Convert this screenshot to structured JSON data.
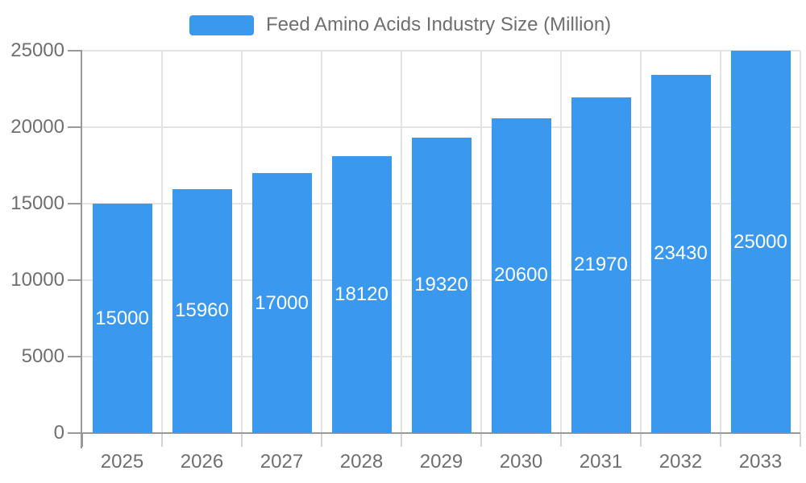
{
  "chart_data": {
    "type": "bar",
    "title": "Feed Amino Acids Industry Size (Million)",
    "categories": [
      "2025",
      "2026",
      "2027",
      "2028",
      "2029",
      "2030",
      "2031",
      "2032",
      "2033"
    ],
    "values": [
      15000,
      15960,
      17000,
      18120,
      19320,
      20600,
      21970,
      23430,
      25000
    ],
    "series": [
      {
        "name": "Feed Amino Acids Industry Size (Million)",
        "values": [
          15000,
          15960,
          17000,
          18120,
          19320,
          20600,
          21970,
          23430,
          25000
        ]
      }
    ],
    "xlabel": "",
    "ylabel": "",
    "ylim": [
      0,
      25000
    ],
    "yticks": [
      0,
      5000,
      10000,
      15000,
      20000,
      25000
    ],
    "grid": true,
    "legend_position": "top",
    "value_labels": "centered-inside-bars",
    "colors": {
      "bar": "#3A99EE",
      "value_label": "#FFFFFF",
      "axis": "#999999",
      "x_tick": "#D4D4D4",
      "grid": "#E4E4E4",
      "tick_label": "#6F6F6F",
      "background": "#FFFFFF"
    }
  }
}
